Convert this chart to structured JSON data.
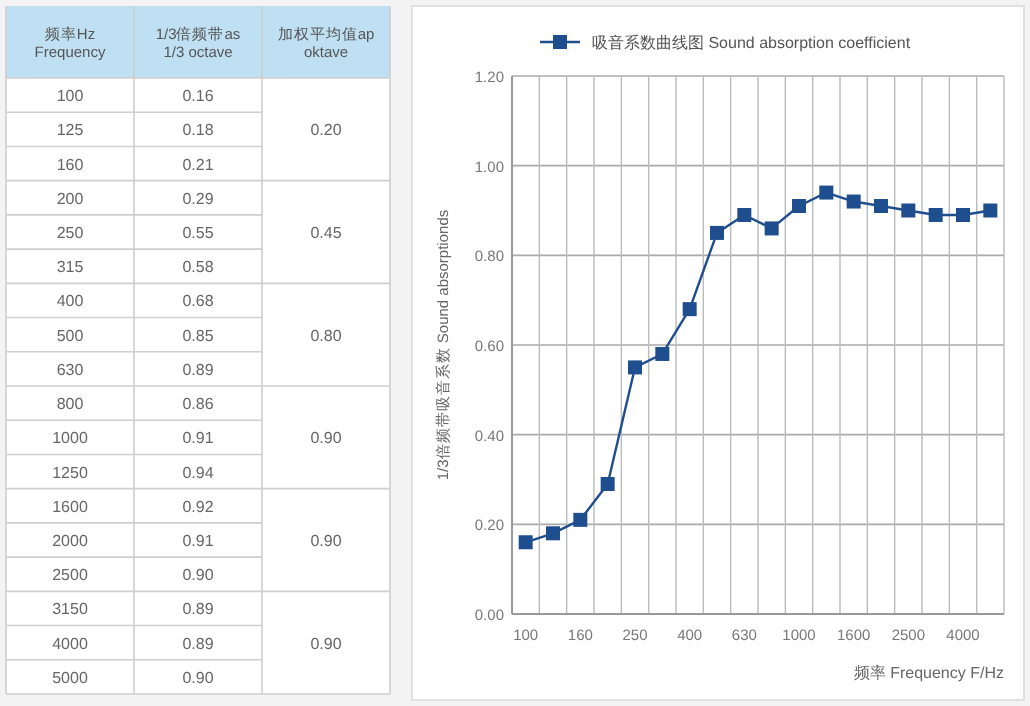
{
  "chart_data": [
    {
      "type": "other",
      "categories": [
        "100",
        "125",
        "160",
        "200",
        "250",
        "315",
        "400",
        "500",
        "630",
        "800",
        "1000",
        "1250",
        "1600",
        "2000",
        "2500",
        "3150",
        "4000",
        "5000"
      ],
      "annotations": [
        "频率Hz\nFrequency",
        "1/3倍频带as\n1/3 octave",
        "加权平均值ap\noktave",
        "0.16",
        "0.18",
        "0.21",
        "0.29",
        "0.55",
        "0.58",
        "0.68",
        "0.85",
        "0.89",
        "0.86",
        "0.91",
        "0.94",
        "0.92",
        "0.91",
        "0.90",
        "0.89",
        "0.89",
        "0.90",
        "0.20",
        "0.45",
        "0.80",
        "0.90",
        "0.90",
        "0.90"
      ]
    },
    {
      "type": "line",
      "categories": [
        "100",
        null,
        "160",
        null,
        "250",
        null,
        "400",
        null,
        "630",
        null,
        "1000",
        null,
        "1600",
        null,
        "2500",
        null,
        "4000",
        null
      ],
      "series": [
        {
          "name": "吸音系数曲线图 Sound absorption coefficient",
          "color": "#1f4e8f",
          "values": [
            0.16,
            0.18,
            0.21,
            0.29,
            0.55,
            0.58,
            0.68,
            0.85,
            0.89,
            0.86,
            0.91,
            0.94,
            0.92,
            0.91,
            0.9,
            0.89,
            0.89,
            0.9
          ]
        }
      ],
      "xlabel": "频率 Frequency F/Hz",
      "ylabel": "1/3倍频带吸音系数  Sound absorptionds",
      "ylim": [
        0,
        1.2
      ],
      "yticks": [
        {
          "value": 0,
          "label": "0.00"
        },
        {
          "value": 0.2,
          "label": "0.20"
        },
        {
          "value": 0.4,
          "label": "0.40"
        },
        {
          "value": 0.6,
          "label": "0.60"
        },
        {
          "value": 0.8,
          "label": "0.80"
        },
        {
          "value": 1.0,
          "label": "1.00"
        },
        {
          "value": 1.2,
          "label": "1.20"
        }
      ],
      "grid": true,
      "legend": "top",
      "marker": "square",
      "line_style": "solid"
    }
  ]
}
